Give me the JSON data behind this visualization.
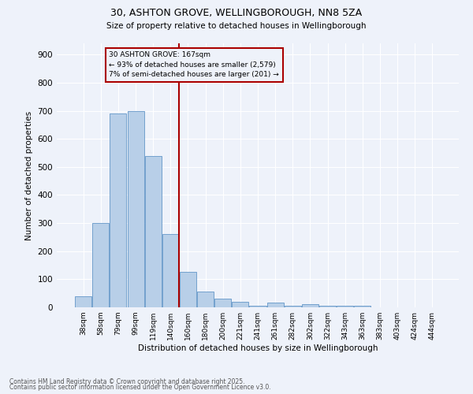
{
  "title_line1": "30, ASHTON GROVE, WELLINGBOROUGH, NN8 5ZA",
  "title_line2": "Size of property relative to detached houses in Wellingborough",
  "xlabel": "Distribution of detached houses by size in Wellingborough",
  "ylabel": "Number of detached properties",
  "categories": [
    "38sqm",
    "58sqm",
    "79sqm",
    "99sqm",
    "119sqm",
    "140sqm",
    "160sqm",
    "180sqm",
    "200sqm",
    "221sqm",
    "241sqm",
    "261sqm",
    "282sqm",
    "302sqm",
    "322sqm",
    "343sqm",
    "363sqm",
    "383sqm",
    "403sqm",
    "424sqm",
    "444sqm"
  ],
  "values": [
    40,
    300,
    690,
    700,
    540,
    260,
    125,
    55,
    30,
    20,
    5,
    18,
    5,
    12,
    5,
    5,
    5,
    1,
    1,
    1,
    1
  ],
  "bar_color": "#b8cfe8",
  "bar_edge_color": "#6496c8",
  "property_line_x": 6.0,
  "annotation_text": "30 ASHTON GROVE: 167sqm\n← 93% of detached houses are smaller (2,579)\n7% of semi-detached houses are larger (201) →",
  "annotation_box_color": "#aa0000",
  "vline_color": "#aa0000",
  "ylim": [
    0,
    940
  ],
  "yticks": [
    0,
    100,
    200,
    300,
    400,
    500,
    600,
    700,
    800,
    900
  ],
  "background_color": "#eef2fa",
  "grid_color": "#ffffff",
  "footer_line1": "Contains HM Land Registry data © Crown copyright and database right 2025.",
  "footer_line2": "Contains public sector information licensed under the Open Government Licence v3.0."
}
